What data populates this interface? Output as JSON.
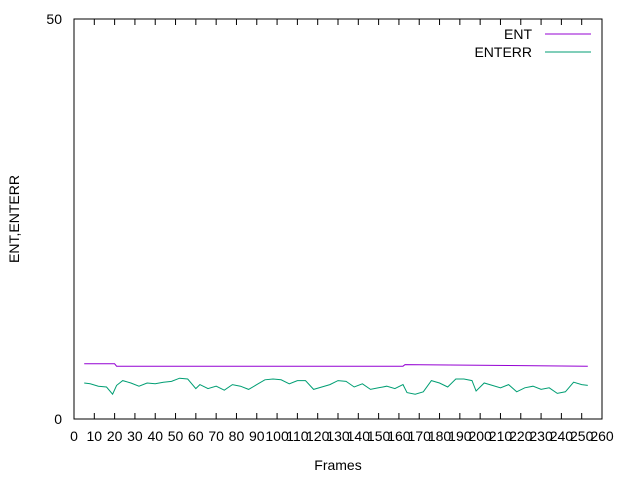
{
  "chart_data": {
    "type": "line",
    "title": "",
    "xlabel": "Frames",
    "ylabel": "ENT,ENTERR",
    "xlim": [
      0,
      260
    ],
    "ylim": [
      0,
      50
    ],
    "x_ticks": [
      0,
      10,
      20,
      30,
      40,
      50,
      60,
      70,
      80,
      90,
      100,
      110,
      120,
      130,
      140,
      150,
      160,
      170,
      180,
      190,
      200,
      210,
      220,
      230,
      240,
      250,
      260
    ],
    "y_ticks": [
      0,
      50
    ],
    "grid": false,
    "legend_position": "top-right",
    "series": [
      {
        "name": "ENT",
        "color": "#9400d3",
        "x": [
          5,
          20,
          21,
          162,
          163,
          253
        ],
        "y": [
          6.9,
          6.9,
          6.6,
          6.6,
          6.8,
          6.6
        ]
      },
      {
        "name": "ENTERR",
        "color": "#009e73",
        "x": [
          5,
          8,
          12,
          16,
          19,
          21,
          24,
          28,
          32,
          36,
          40,
          44,
          48,
          52,
          56,
          60,
          62,
          66,
          70,
          74,
          78,
          82,
          86,
          90,
          94,
          98,
          102,
          106,
          110,
          114,
          118,
          122,
          126,
          130,
          134,
          138,
          142,
          146,
          150,
          154,
          158,
          162,
          164,
          168,
          172,
          176,
          180,
          184,
          188,
          192,
          196,
          198,
          202,
          206,
          210,
          214,
          218,
          222,
          226,
          230,
          234,
          238,
          242,
          246,
          250,
          253
        ],
        "y": [
          4.5,
          4.4,
          4.1,
          4.0,
          3.1,
          4.2,
          4.8,
          4.5,
          4.1,
          4.5,
          4.4,
          4.6,
          4.7,
          5.1,
          5.0,
          3.8,
          4.3,
          3.8,
          4.1,
          3.6,
          4.3,
          4.1,
          3.7,
          4.3,
          4.9,
          5.0,
          4.9,
          4.4,
          4.8,
          4.8,
          3.7,
          4.0,
          4.3,
          4.8,
          4.7,
          4.0,
          4.4,
          3.7,
          3.9,
          4.1,
          3.8,
          4.3,
          3.3,
          3.1,
          3.4,
          4.8,
          4.5,
          4.0,
          5.0,
          5.0,
          4.8,
          3.5,
          4.5,
          4.2,
          3.9,
          4.3,
          3.4,
          3.9,
          4.1,
          3.7,
          3.9,
          3.2,
          3.4,
          4.6,
          4.3,
          4.2
        ]
      }
    ]
  }
}
